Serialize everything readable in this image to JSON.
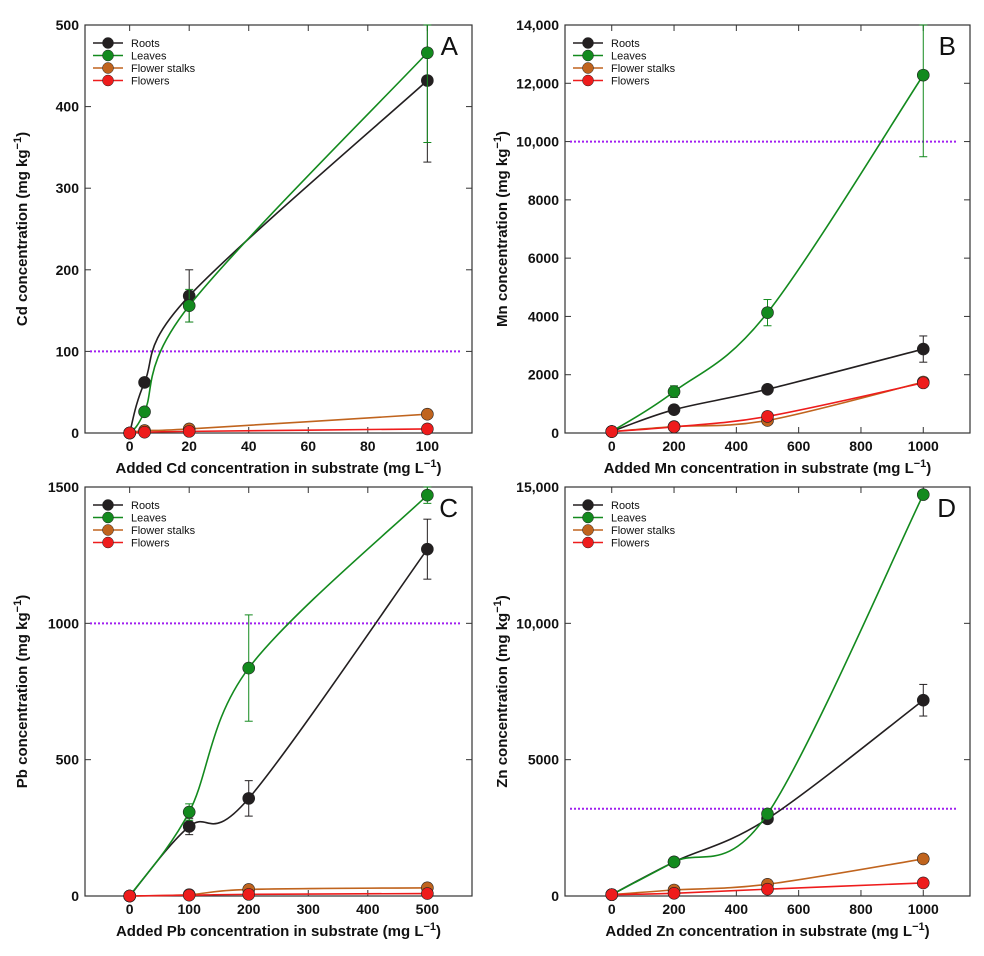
{
  "colors": {
    "roots": "#231f20",
    "leaves": "#138a1e",
    "flower_stalks": "#c0641e",
    "flowers": "#ee1c1c",
    "threshold": "#a020f0"
  },
  "chart_data": [
    {
      "type": "line",
      "panel": "A",
      "xlabel": "Added Cd concentration in substrate (mg L",
      "xlabel_sup": "−1",
      "xlabel_end": ")",
      "ylabel": "Cd concentration (mg kg",
      "ylabel_sup": "−1",
      "ylabel_end": ")",
      "xlim": [
        -15,
        115
      ],
      "ylim": [
        0,
        500
      ],
      "xticks": [
        0,
        20,
        40,
        60,
        80,
        100
      ],
      "xticklabels": [
        "0",
        "20",
        "40",
        "60",
        "80",
        "100"
      ],
      "yticks": [
        0,
        100,
        200,
        300,
        400,
        500
      ],
      "yticklabels": [
        "0",
        "100",
        "200",
        "300",
        "400",
        "500"
      ],
      "threshold": 100,
      "series": [
        {
          "name": "Roots",
          "key": "roots",
          "x": [
            0,
            5,
            20,
            100
          ],
          "y": [
            0,
            62,
            168,
            432
          ],
          "err": [
            0,
            0,
            32,
            100
          ]
        },
        {
          "name": "Leaves",
          "key": "leaves",
          "x": [
            0,
            5,
            20,
            100
          ],
          "y": [
            0,
            26,
            156,
            466
          ],
          "err": [
            0,
            0,
            20,
            110
          ]
        },
        {
          "name": "Flower stalks",
          "key": "flower_stalks",
          "x": [
            0,
            5,
            20,
            100
          ],
          "y": [
            0,
            3,
            5,
            23
          ],
          "err": [
            0,
            0,
            0,
            0
          ]
        },
        {
          "name": "Flowers",
          "key": "flowers",
          "x": [
            0,
            5,
            20,
            100
          ],
          "y": [
            0,
            1,
            2,
            5
          ],
          "err": [
            0,
            0,
            0,
            0
          ]
        }
      ]
    },
    {
      "type": "line",
      "panel": "B",
      "xlabel": "Added Mn concentration in substrate (mg L",
      "xlabel_sup": "−1",
      "xlabel_end": ")",
      "ylabel": "Mn concentration (mg kg",
      "ylabel_sup": "−1",
      "ylabel_end": ")",
      "xlim": [
        -150,
        1150
      ],
      "ylim": [
        0,
        14000
      ],
      "xticks": [
        0,
        200,
        400,
        600,
        800,
        1000
      ],
      "xticklabels": [
        "0",
        "200",
        "400",
        "600",
        "800",
        "1000"
      ],
      "yticks": [
        0,
        2000,
        4000,
        6000,
        8000,
        10000,
        12000,
        14000
      ],
      "yticklabels": [
        "0",
        "2000",
        "4000",
        "6000",
        "8000",
        "10,000",
        "12,000",
        "14,000"
      ],
      "threshold": 10000,
      "series": [
        {
          "name": "Roots",
          "key": "roots",
          "x": [
            0,
            200,
            500,
            1000
          ],
          "y": [
            50,
            800,
            1500,
            2880
          ],
          "err": [
            0,
            0,
            0,
            450
          ]
        },
        {
          "name": "Leaves",
          "key": "leaves",
          "x": [
            0,
            200,
            500,
            1000
          ],
          "y": [
            50,
            1420,
            4130,
            12280
          ],
          "err": [
            0,
            200,
            450,
            2800
          ]
        },
        {
          "name": "Flower stalks",
          "key": "flower_stalks",
          "x": [
            0,
            200,
            500,
            1000
          ],
          "y": [
            50,
            220,
            430,
            1750
          ],
          "err": [
            0,
            0,
            0,
            0
          ]
        },
        {
          "name": "Flowers",
          "key": "flowers",
          "x": [
            0,
            200,
            500,
            1000
          ],
          "y": [
            50,
            210,
            570,
            1720
          ],
          "err": [
            0,
            0,
            0,
            0
          ]
        }
      ]
    },
    {
      "type": "line",
      "panel": "C",
      "xlabel": "Added Pb concentration in substrate (mg L",
      "xlabel_sup": "−1",
      "xlabel_end": ")",
      "ylabel": "Pb concentration (mg kg",
      "ylabel_sup": "−1",
      "ylabel_end": ")",
      "xlim": [
        -75,
        575
      ],
      "ylim": [
        0,
        1500
      ],
      "xticks": [
        0,
        100,
        200,
        300,
        400,
        500
      ],
      "xticklabels": [
        "0",
        "100",
        "200",
        "300",
        "400",
        "500"
      ],
      "yticks": [
        0,
        500,
        1000,
        1500
      ],
      "yticklabels": [
        "0",
        "500",
        "1000",
        "1500"
      ],
      "threshold": 1000,
      "series": [
        {
          "name": "Roots",
          "key": "roots",
          "x": [
            0,
            100,
            200,
            500
          ],
          "y": [
            0,
            255,
            358,
            1272
          ],
          "err": [
            0,
            30,
            65,
            110
          ]
        },
        {
          "name": "Leaves",
          "key": "leaves",
          "x": [
            0,
            100,
            200,
            500
          ],
          "y": [
            0,
            308,
            836,
            1470
          ],
          "err": [
            0,
            30,
            195,
            30
          ]
        },
        {
          "name": "Flower stalks",
          "key": "flower_stalks",
          "x": [
            0,
            100,
            200,
            500
          ],
          "y": [
            0,
            5,
            24,
            30
          ],
          "err": [
            0,
            0,
            0,
            0
          ]
        },
        {
          "name": "Flowers",
          "key": "flowers",
          "x": [
            0,
            100,
            200,
            500
          ],
          "y": [
            0,
            3,
            6,
            9
          ],
          "err": [
            0,
            0,
            0,
            0
          ]
        }
      ]
    },
    {
      "type": "line",
      "panel": "D",
      "xlabel": "Added Zn concentration in substrate (mg L",
      "xlabel_sup": "−1",
      "xlabel_end": ")",
      "ylabel": "Zn concentration (mg kg",
      "ylabel_sup": "−1",
      "ylabel_end": ")",
      "xlim": [
        -150,
        1150
      ],
      "ylim": [
        0,
        15000
      ],
      "xticks": [
        0,
        200,
        400,
        600,
        800,
        1000
      ],
      "xticklabels": [
        "0",
        "200",
        "400",
        "600",
        "800",
        "1000"
      ],
      "yticks": [
        0,
        5000,
        10000,
        15000
      ],
      "yticklabels": [
        "0",
        "5000",
        "10,000",
        "15,000"
      ],
      "threshold": 3200,
      "series": [
        {
          "name": "Roots",
          "key": "roots",
          "x": [
            0,
            200,
            500,
            1000
          ],
          "y": [
            50,
            1250,
            2830,
            7180
          ],
          "err": [
            0,
            0,
            0,
            580
          ]
        },
        {
          "name": "Leaves",
          "key": "leaves",
          "x": [
            0,
            200,
            500,
            1000
          ],
          "y": [
            50,
            1250,
            3010,
            14720
          ],
          "err": [
            0,
            0,
            0,
            0
          ]
        },
        {
          "name": "Flower stalks",
          "key": "flower_stalks",
          "x": [
            0,
            200,
            500,
            1000
          ],
          "y": [
            50,
            220,
            430,
            1360
          ],
          "err": [
            0,
            0,
            0,
            0
          ]
        },
        {
          "name": "Flowers",
          "key": "flowers",
          "x": [
            0,
            200,
            500,
            1000
          ],
          "y": [
            50,
            100,
            250,
            480
          ],
          "err": [
            0,
            0,
            0,
            0
          ]
        }
      ]
    }
  ]
}
